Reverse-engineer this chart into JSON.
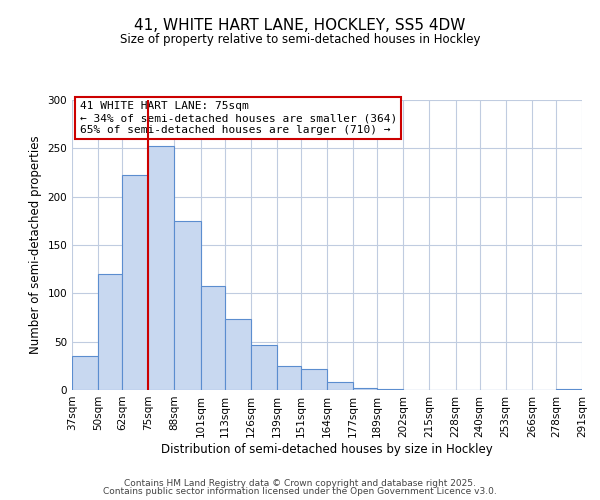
{
  "title": "41, WHITE HART LANE, HOCKLEY, SS5 4DW",
  "subtitle": "Size of property relative to semi-detached houses in Hockley",
  "xlabel": "Distribution of semi-detached houses by size in Hockley",
  "ylabel": "Number of semi-detached properties",
  "footer_line1": "Contains HM Land Registry data © Crown copyright and database right 2025.",
  "footer_line2": "Contains public sector information licensed under the Open Government Licence v3.0.",
  "bar_edges": [
    37,
    50,
    62,
    75,
    88,
    101,
    113,
    126,
    139,
    151,
    164,
    177,
    189,
    202,
    215,
    228,
    240,
    253,
    266,
    278,
    291
  ],
  "bar_heights": [
    35,
    120,
    222,
    252,
    175,
    108,
    73,
    47,
    25,
    22,
    8,
    2,
    1,
    0,
    0,
    0,
    0,
    0,
    0,
    1
  ],
  "bar_color": "#c8d8f0",
  "bar_edgecolor": "#5b8dcf",
  "vline_x": 75,
  "vline_color": "#cc0000",
  "annotation_title": "41 WHITE HART LANE: 75sqm",
  "annotation_line1": "← 34% of semi-detached houses are smaller (364)",
  "annotation_line2": "65% of semi-detached houses are larger (710) →",
  "ylim": [
    0,
    300
  ],
  "yticks": [
    0,
    50,
    100,
    150,
    200,
    250,
    300
  ],
  "background_color": "#ffffff",
  "grid_color": "#c0cce0",
  "title_fontsize": 11,
  "subtitle_fontsize": 8.5,
  "axis_label_fontsize": 8.5,
  "tick_fontsize": 7.5,
  "footer_fontsize": 6.5
}
